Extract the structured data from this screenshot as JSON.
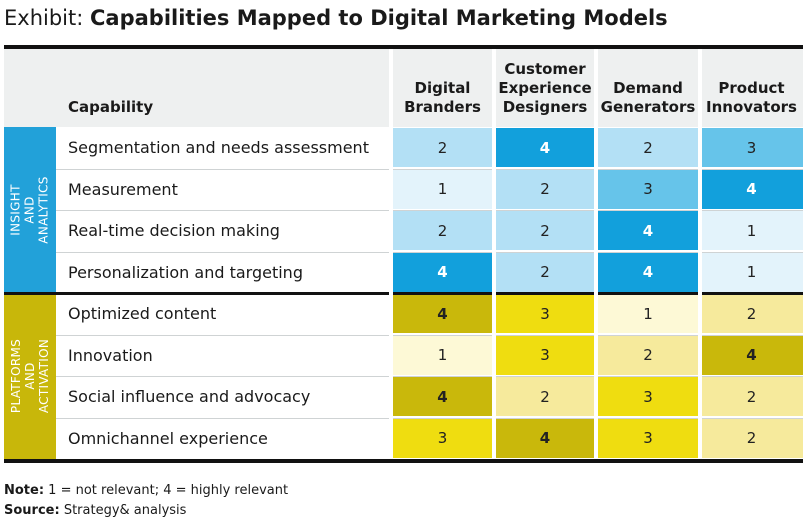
{
  "title": {
    "lead": "Exhibit: ",
    "main": "Capabilities Mapped to Digital Marketing Models"
  },
  "header": {
    "capability": "Capability",
    "columns": [
      "Digital\nBranders",
      "Customer\nExperience\nDesigners",
      "Demand\nGenerators",
      "Product\nInnovators"
    ]
  },
  "sections": [
    {
      "label": "INSIGHT AND\nANALYTICS",
      "color": "#22a1d9"
    },
    {
      "label": "PLATFORMS AND\nACTIVATION",
      "color": "#c8b70a"
    }
  ],
  "rows": [
    {
      "label": "Segmentation and needs assessment",
      "values": [
        "2",
        "4",
        "2",
        "3"
      ]
    },
    {
      "label": "Measurement",
      "values": [
        "1",
        "2",
        "3",
        "4"
      ]
    },
    {
      "label": "Real-time decision making",
      "values": [
        "2",
        "2",
        "4",
        "1"
      ]
    },
    {
      "label": "Personalization and targeting",
      "values": [
        "4",
        "2",
        "4",
        "1"
      ]
    },
    {
      "label": "Optimized content",
      "values": [
        "4",
        "3",
        "1",
        "2"
      ]
    },
    {
      "label": "Innovation",
      "values": [
        "1",
        "3",
        "2",
        "4"
      ]
    },
    {
      "label": "Social influence and advocacy",
      "values": [
        "4",
        "2",
        "3",
        "2"
      ]
    },
    {
      "label": "Omnichannel experience",
      "values": [
        "3",
        "4",
        "3",
        "2"
      ]
    }
  ],
  "colors": {
    "blue": {
      "1": "#e3f3fb",
      "2": "#b3e0f5",
      "3": "#66c4ea",
      "4": "#12a0dc"
    },
    "yellow": {
      "1": "#fdf9d6",
      "2": "#f6ea9c",
      "3": "#efdd10",
      "4": "#c9b80b"
    }
  },
  "note": {
    "label": "Note:",
    "text": " 1 = not relevant; 4 = highly relevant"
  },
  "source": {
    "label": "Source:",
    "text": " Strategy& analysis"
  }
}
